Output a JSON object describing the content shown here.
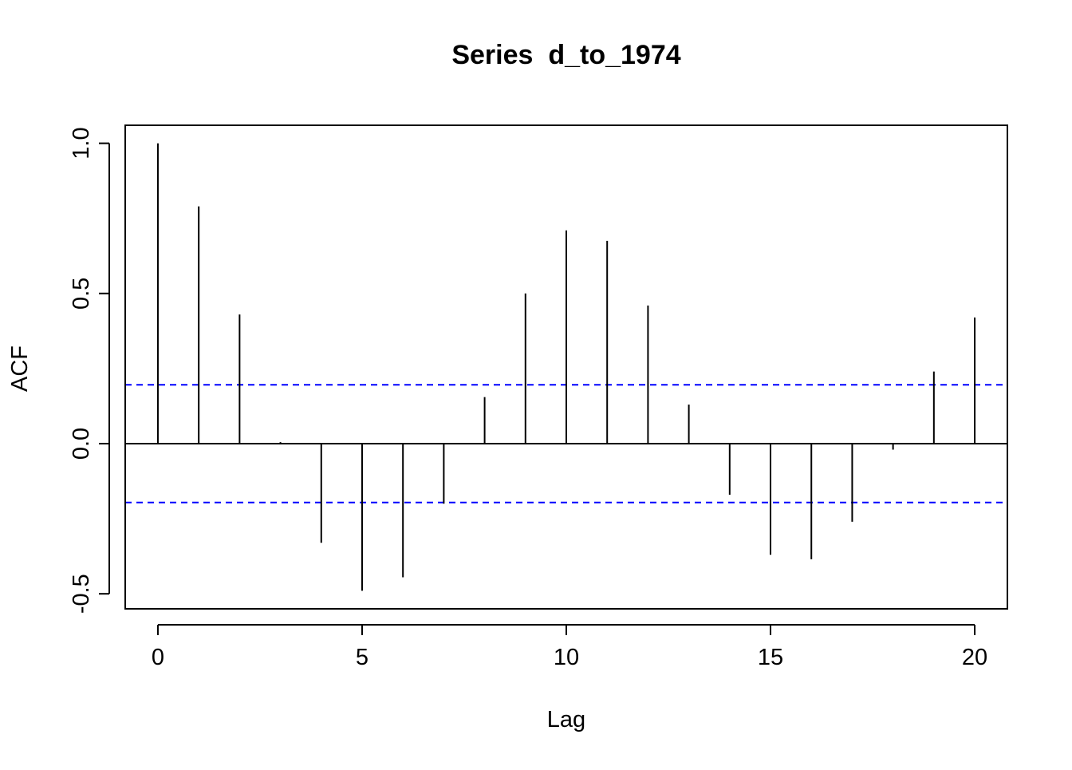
{
  "chart_data": {
    "type": "bar",
    "title": "Series  d_to_1974",
    "xlabel": "Lag",
    "ylabel": "ACF",
    "x": [
      0,
      1,
      2,
      3,
      4,
      5,
      6,
      7,
      8,
      9,
      10,
      11,
      12,
      13,
      14,
      15,
      16,
      17,
      18,
      19,
      20
    ],
    "values": [
      1.0,
      0.79,
      0.43,
      0.005,
      -0.33,
      -0.49,
      -0.445,
      -0.2,
      0.155,
      0.5,
      0.71,
      0.675,
      0.46,
      0.13,
      -0.17,
      -0.37,
      -0.385,
      -0.26,
      -0.02,
      0.24,
      0.42
    ],
    "confidence_bound": 0.196,
    "xlim": [
      -0.8,
      20.8
    ],
    "ylim": [
      -0.55,
      1.06
    ],
    "x_ticks": [
      0,
      5,
      10,
      15,
      20
    ],
    "x_tick_labels": [
      "0",
      "5",
      "10",
      "15",
      "20"
    ],
    "y_ticks": [
      -0.5,
      0.0,
      0.5,
      1.0
    ],
    "y_tick_labels": [
      "-0.5",
      "0.0",
      "0.5",
      "1.0"
    ],
    "grid": false,
    "legend": "none",
    "colors": {
      "bars": "#000000",
      "zero_line": "#000000",
      "confidence": "#0000ff",
      "frame": "#000000"
    }
  }
}
